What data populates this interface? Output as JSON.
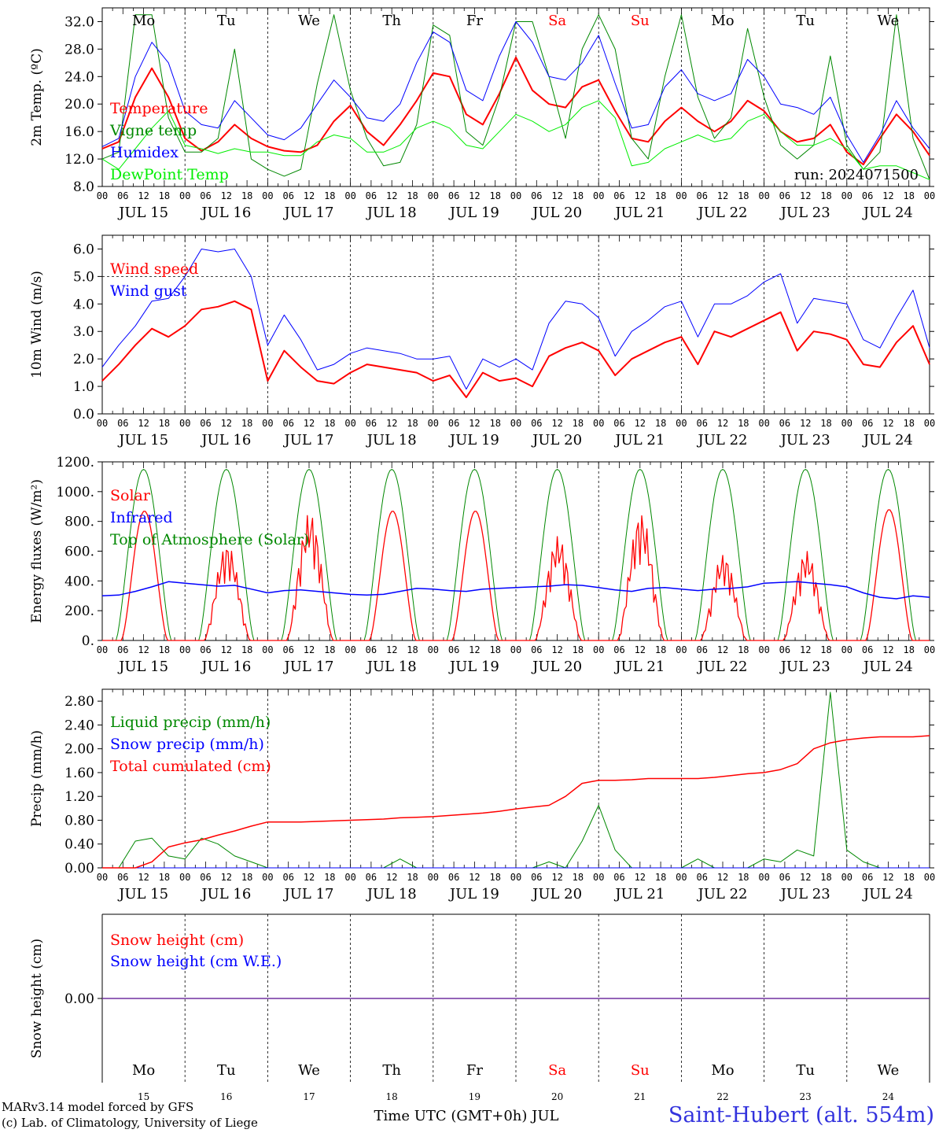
{
  "chart_data": [
    {
      "type": "line",
      "ylabel": "2m Temp. (ºC)",
      "ylim": [
        8,
        34
      ],
      "yticks": [
        "8.0",
        "12.0",
        "16.0",
        "20.0",
        "24.0",
        "28.0",
        "32.0"
      ],
      "annotation": "run: 2024071500",
      "series": [
        {
          "name": "Temperature",
          "color": "#ff0000",
          "values": [
            13.5,
            14.5,
            21,
            25.2,
            21,
            15,
            13.2,
            14.5,
            17,
            15,
            13.8,
            13.2,
            13,
            14,
            17.5,
            19.8,
            16,
            14,
            17,
            20.5,
            24.5,
            24,
            18.5,
            17,
            21.5,
            26.8,
            22,
            20,
            19.5,
            22.5,
            23.5,
            19,
            15,
            14.5,
            17.5,
            19.5,
            17.5,
            16,
            17.5,
            20.5,
            19,
            16,
            14.5,
            15,
            17,
            13,
            11.2,
            15,
            18.5,
            16,
            12.5
          ]
        },
        {
          "name": "Vigne temp",
          "color": "#008800",
          "values": [
            12,
            13,
            33,
            33,
            18,
            13,
            13,
            15,
            28,
            12,
            10.5,
            9.5,
            10.5,
            23,
            33,
            22,
            15,
            11,
            11.5,
            17,
            31.5,
            30,
            16,
            14,
            21,
            32,
            32,
            24,
            15,
            28,
            33,
            28,
            15,
            12,
            24,
            33,
            21,
            15,
            18,
            31,
            21,
            14,
            12,
            14,
            27,
            14,
            10.5,
            13,
            33,
            15,
            9
          ]
        },
        {
          "name": "Humidex",
          "color": "#0000ff",
          "values": [
            13.8,
            15,
            24,
            29,
            26,
            19,
            17,
            16.5,
            20.5,
            18,
            15.5,
            14.8,
            16.5,
            20,
            23.5,
            21,
            18,
            17.5,
            20,
            26,
            30.5,
            29,
            22,
            20.5,
            27,
            32,
            29,
            24,
            23.5,
            26,
            30,
            23,
            16.5,
            17,
            22.5,
            25,
            21.5,
            20.5,
            21.5,
            26.5,
            24,
            20,
            19.5,
            18.5,
            21,
            15.5,
            11.5,
            15.5,
            20.5,
            16.5,
            13.5
          ]
        },
        {
          "name": "DewPoint Temp",
          "color": "#00ee00",
          "values": [
            12,
            10.5,
            13.5,
            16.5,
            19,
            14,
            13.5,
            12.8,
            13.5,
            13,
            13,
            12.5,
            12.5,
            14.5,
            15.5,
            15,
            13,
            13,
            14,
            16.5,
            17.5,
            16.5,
            14,
            13.5,
            16,
            18.5,
            17.5,
            16,
            17,
            19.5,
            20.5,
            18,
            11,
            11.5,
            13.5,
            14.5,
            15.5,
            14.5,
            15,
            17.5,
            18.5,
            16,
            14,
            14,
            15,
            13.5,
            10.5,
            11,
            11,
            10,
            9
          ]
        }
      ]
    },
    {
      "type": "line",
      "ylabel": "10m Wind (m/s)",
      "ylim": [
        0,
        6.5
      ],
      "yticks": [
        "0.0",
        "1.0",
        "2.0",
        "3.0",
        "4.0",
        "5.0",
        "6.0"
      ],
      "series": [
        {
          "name": "Wind speed",
          "color": "#ff0000",
          "values": [
            1.2,
            1.8,
            2.5,
            3.1,
            2.8,
            3.2,
            3.8,
            3.9,
            4.1,
            3.8,
            1.2,
            2.3,
            1.7,
            1.2,
            1.1,
            1.5,
            1.8,
            1.7,
            1.6,
            1.5,
            1.2,
            1.4,
            0.6,
            1.5,
            1.2,
            1.3,
            1,
            2.1,
            2.4,
            2.6,
            2.3,
            1.4,
            2,
            2.3,
            2.6,
            2.8,
            1.8,
            3,
            2.8,
            3.1,
            3.4,
            3.7,
            2.3,
            3,
            2.9,
            2.7,
            1.8,
            1.7,
            2.6,
            3.2,
            1.8
          ]
        },
        {
          "name": "Wind gust",
          "color": "#0000ff",
          "values": [
            1.7,
            2.5,
            3.2,
            4.1,
            4.2,
            5,
            6,
            5.9,
            6,
            5,
            2.5,
            3.6,
            2.7,
            1.6,
            1.8,
            2.2,
            2.4,
            2.3,
            2.2,
            2,
            2,
            2.1,
            0.9,
            2,
            1.7,
            2,
            1.6,
            3.3,
            4.1,
            4,
            3.5,
            2.1,
            3,
            3.4,
            3.9,
            4.1,
            2.8,
            4,
            4,
            4.3,
            4.8,
            5.1,
            3.3,
            4.2,
            4.1,
            4,
            2.7,
            2.4,
            3.5,
            4.5,
            2.4
          ]
        }
      ]
    },
    {
      "type": "line",
      "ylabel": "Energy fluxes (W/m²)",
      "ylim": [
        0,
        1200
      ],
      "yticks": [
        "0.",
        "200.",
        "400.",
        "600.",
        "800.",
        "1000.",
        "1200."
      ],
      "series": [
        {
          "name": "Solar",
          "color": "#ff0000",
          "days": [
            [
              870,
              "smooth"
            ],
            [
              650,
              "spiky"
            ],
            [
              860,
              "spiky"
            ],
            [
              870,
              "smooth"
            ],
            [
              870,
              "smooth"
            ],
            [
              700,
              "spiky"
            ],
            [
              860,
              "spiky"
            ],
            [
              580,
              "spiky"
            ],
            [
              600,
              "spiky"
            ],
            [
              880,
              "smooth"
            ]
          ]
        },
        {
          "name": "Infrared",
          "color": "#0000ff",
          "values": [
            300,
            305,
            330,
            360,
            395,
            385,
            375,
            365,
            370,
            345,
            320,
            335,
            340,
            330,
            320,
            310,
            305,
            310,
            330,
            350,
            345,
            335,
            330,
            345,
            350,
            355,
            360,
            365,
            375,
            370,
            355,
            340,
            330,
            350,
            355,
            345,
            335,
            345,
            350,
            360,
            385,
            390,
            395,
            385,
            375,
            360,
            320,
            290,
            280,
            300,
            290
          ]
        },
        {
          "name": "Top of Atmosphere (Solar)",
          "color": "#008800",
          "peak": 1150
        }
      ]
    },
    {
      "type": "line",
      "ylabel": "Precip (mm/h)",
      "ylim": [
        0,
        3.0
      ],
      "yticks": [
        "0.00",
        "0.40",
        "0.80",
        "1.20",
        "1.60",
        "2.00",
        "2.40",
        "2.80"
      ],
      "series": [
        {
          "name": "Liquid precip (mm/h)",
          "color": "#008800",
          "values": [
            0,
            0,
            0.45,
            0.5,
            0.2,
            0.15,
            0.5,
            0.4,
            0.2,
            0.1,
            0,
            0,
            0,
            0,
            0,
            0,
            0,
            0,
            0.15,
            0,
            0,
            0,
            0,
            0,
            0,
            0,
            0,
            0.1,
            0,
            0.45,
            1.05,
            0.3,
            0,
            0,
            0,
            0,
            0.15,
            0,
            0,
            0,
            0.15,
            0.1,
            0.3,
            0.2,
            2.95,
            0.3,
            0.1,
            0,
            0,
            0,
            0
          ]
        },
        {
          "name": "Snow precip (mm/h)",
          "color": "#0000ff",
          "values": [
            0,
            0,
            0,
            0,
            0,
            0,
            0,
            0,
            0,
            0,
            0,
            0,
            0,
            0,
            0,
            0,
            0,
            0,
            0,
            0,
            0,
            0,
            0,
            0,
            0,
            0,
            0,
            0,
            0,
            0,
            0,
            0,
            0,
            0,
            0,
            0,
            0,
            0,
            0,
            0,
            0,
            0,
            0,
            0,
            0,
            0,
            0,
            0,
            0,
            0,
            0
          ]
        },
        {
          "name": "Total cumulated (cm)",
          "color": "#ff0000",
          "values": [
            0,
            0,
            0,
            0.1,
            0.35,
            0.42,
            0.47,
            0.55,
            0.62,
            0.7,
            0.77,
            0.77,
            0.77,
            0.78,
            0.79,
            0.8,
            0.81,
            0.82,
            0.84,
            0.85,
            0.86,
            0.88,
            0.9,
            0.92,
            0.95,
            0.99,
            1.02,
            1.05,
            1.2,
            1.42,
            1.47,
            1.47,
            1.48,
            1.5,
            1.5,
            1.5,
            1.5,
            1.52,
            1.55,
            1.58,
            1.6,
            1.65,
            1.75,
            2.0,
            2.1,
            2.15,
            2.18,
            2.2,
            2.2,
            2.2,
            2.22
          ]
        }
      ]
    },
    {
      "type": "line",
      "ylabel": "Snow height (cm)",
      "yticks": [
        "0.00"
      ],
      "series": [
        {
          "name": "Snow height (cm)",
          "color": "#ff0000",
          "value": 0
        },
        {
          "name": "Snow height (cm W.E.)",
          "color": "#0000ff",
          "value": 0
        }
      ]
    }
  ],
  "time_axis": {
    "hour_ticks": [
      "00",
      "06",
      "12",
      "18"
    ],
    "date_labels": [
      "JUL 15",
      "JUL 16",
      "JUL 17",
      "JUL 18",
      "JUL 19",
      "JUL 20",
      "JUL 21",
      "JUL 22",
      "JUL 23",
      "JUL 24"
    ],
    "weekdays": [
      "Mo",
      "Tu",
      "We",
      "Th",
      "Fr",
      "Sa",
      "Su",
      "Mo",
      "Tu",
      "We"
    ],
    "weekend_flags": [
      false,
      false,
      false,
      false,
      false,
      true,
      true,
      false,
      false,
      false
    ],
    "day_numbers": [
      "15",
      "16",
      "17",
      "18",
      "19",
      "20",
      "21",
      "22",
      "23",
      "24"
    ],
    "xlabel": "Time UTC (GMT+0h) JUL"
  },
  "colors": {
    "red": "#ff0000",
    "green": "#008800",
    "bright_green": "#00ee00",
    "blue": "#0000ff",
    "station_blue": "#3333dd",
    "snow_line": "#7030a0"
  },
  "footer": {
    "credit_line1": "MARv3.14 model forced by GFS",
    "credit_line2": "(c) Lab. of Climatology, University of Liege",
    "station": "Saint-Hubert (alt. 554m)"
  }
}
